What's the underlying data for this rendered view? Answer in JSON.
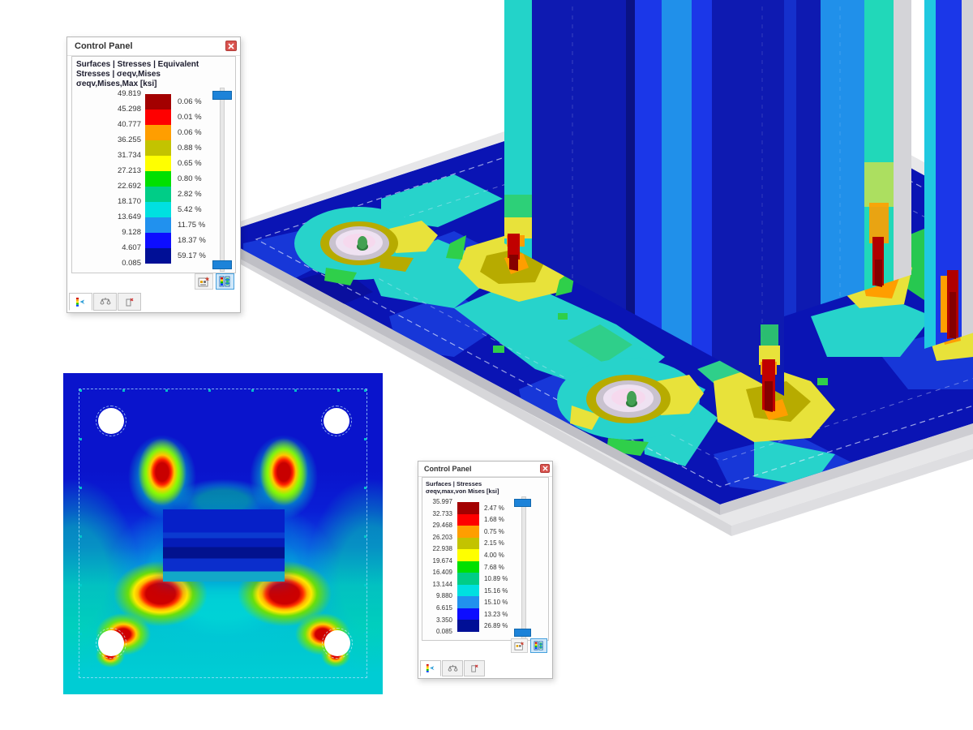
{
  "panel1": {
    "title": "Control Panel",
    "header_line1": "Surfaces | Stresses | Equivalent Stresses | σeqv,Mises",
    "header_line2": "σeqv,Mises,Max [ksi]",
    "values": [
      "49.819",
      "45.298",
      "40.777",
      "36.255",
      "31.734",
      "27.213",
      "22.692",
      "18.170",
      "13.649",
      "9.128",
      "4.607",
      "0.085"
    ],
    "bins": [
      {
        "color": "#a30000",
        "pct": "0.06 %"
      },
      {
        "color": "#fe0000",
        "pct": "0.01 %"
      },
      {
        "color": "#ff9e00",
        "pct": "0.06 %"
      },
      {
        "color": "#c3c300",
        "pct": "0.88 %"
      },
      {
        "color": "#ffff00",
        "pct": "0.65 %"
      },
      {
        "color": "#00e000",
        "pct": "0.80 %"
      },
      {
        "color": "#00cd87",
        "pct": "2.82 %"
      },
      {
        "color": "#00e0e0",
        "pct": "5.42 %"
      },
      {
        "color": "#2191ee",
        "pct": "11.75 %"
      },
      {
        "color": "#0d0dff",
        "pct": "18.37 %"
      },
      {
        "color": "#000f96",
        "pct": "59.17 %"
      }
    ]
  },
  "panel2": {
    "title": "Control Panel",
    "header_line1": "Surfaces | Stresses",
    "header_line2": "σeqv,max,von Mises [ksi]",
    "values": [
      "35.997",
      "32.733",
      "29.468",
      "26.203",
      "22.938",
      "19.674",
      "16.409",
      "13.144",
      "9.880",
      "6.615",
      "3.350",
      "0.085"
    ],
    "bins": [
      {
        "color": "#a30000",
        "pct": "2.47 %"
      },
      {
        "color": "#fe0000",
        "pct": "1.68 %"
      },
      {
        "color": "#ff9e00",
        "pct": "0.75 %"
      },
      {
        "color": "#c3c300",
        "pct": "2.15 %"
      },
      {
        "color": "#ffff00",
        "pct": "4.00 %"
      },
      {
        "color": "#00e000",
        "pct": "7.68 %"
      },
      {
        "color": "#00cd87",
        "pct": "10.89 %"
      },
      {
        "color": "#00e0e0",
        "pct": "15.16 %"
      },
      {
        "color": "#2191ee",
        "pct": "15.10 %"
      },
      {
        "color": "#0d0dff",
        "pct": "13.23 %"
      },
      {
        "color": "#000f96",
        "pct": "26.89 %"
      }
    ]
  },
  "palette": {
    "plate_navy": "#0a14b4",
    "royal": "#1737d8",
    "cyan": "#27d3cb",
    "green": "#2fcf8a",
    "yellow": "#e8e23a",
    "olive": "#b7ab00",
    "orange": "#ff9e00",
    "red": "#c00000",
    "dark_red": "#850000",
    "steel_gray": "#c9c9cd"
  }
}
